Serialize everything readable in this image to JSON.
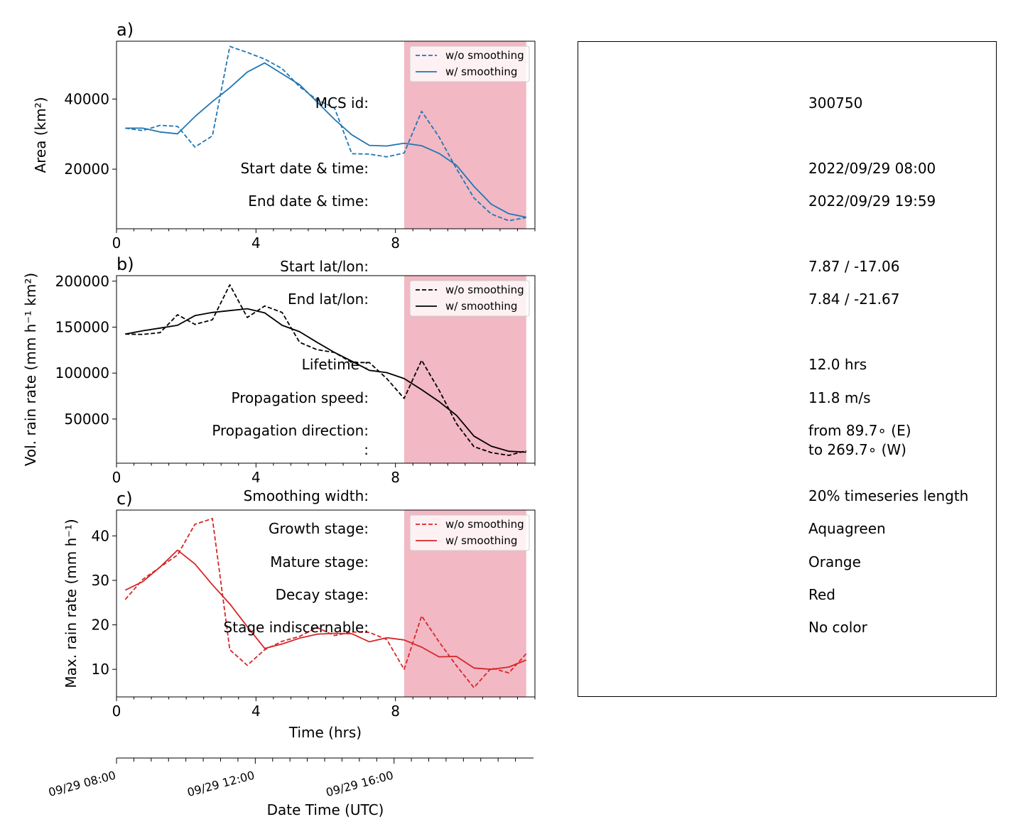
{
  "colors": {
    "decay_span": "#f2b8c4",
    "panel_a": "#1f77b4",
    "panel_b": "#000000",
    "panel_c": "#d62728"
  },
  "chart_data": [
    {
      "type": "line",
      "panel_label": "a)",
      "ylabel": "Area  (km²)",
      "xlabel": "",
      "xlim": [
        0,
        12
      ],
      "ylim": [
        3000,
        56500
      ],
      "xticks": [
        0,
        4,
        8
      ],
      "yticks": [
        20000,
        40000
      ],
      "ytick_labels": [
        "20000",
        "40000"
      ],
      "decay_span": [
        8.25,
        11.75
      ],
      "legend": "top-right",
      "color": "#1f77b4",
      "x": [
        0.25,
        0.75,
        1.25,
        1.75,
        2.25,
        2.75,
        3.25,
        3.75,
        4.25,
        4.75,
        5.25,
        5.75,
        6.25,
        6.75,
        7.25,
        7.75,
        8.25,
        8.75,
        9.25,
        9.75,
        10.25,
        10.75,
        11.25,
        11.75
      ],
      "series": [
        {
          "name": "w/o smoothing",
          "dash": true,
          "values": [
            31700,
            31000,
            32500,
            32200,
            26300,
            29500,
            55000,
            53300,
            51400,
            48700,
            43500,
            39800,
            37500,
            24400,
            24300,
            23500,
            24600,
            36500,
            29200,
            20100,
            11800,
            7200,
            5300,
            6200
          ]
        },
        {
          "name": "w/ smoothing",
          "dash": false,
          "values": [
            31700,
            31700,
            30600,
            30100,
            35000,
            39300,
            43200,
            47700,
            50300,
            47200,
            44100,
            39200,
            34200,
            29800,
            26800,
            26600,
            27400,
            26700,
            24500,
            21100,
            15100,
            10000,
            7300,
            6300
          ]
        }
      ]
    },
    {
      "type": "line",
      "panel_label": "b)",
      "ylabel": "Vol. rain rate (mm h⁻¹ km²)",
      "xlabel": "",
      "xlim": [
        0,
        12
      ],
      "ylim": [
        2000,
        206000
      ],
      "xticks": [
        0,
        4,
        8
      ],
      "yticks": [
        50000,
        100000,
        150000,
        200000
      ],
      "ytick_labels": [
        "50000",
        "100000",
        "150000",
        "200000"
      ],
      "decay_span": [
        8.25,
        11.75
      ],
      "legend": "top-right",
      "color": "#000000",
      "x": [
        0.25,
        0.75,
        1.25,
        1.75,
        2.25,
        2.75,
        3.25,
        3.75,
        4.25,
        4.75,
        5.25,
        5.75,
        6.25,
        6.75,
        7.25,
        7.75,
        8.25,
        8.75,
        9.25,
        9.75,
        10.25,
        10.75,
        11.25,
        11.75
      ],
      "series": [
        {
          "name": "w/o smoothing",
          "dash": true,
          "values": [
            142500,
            142000,
            144000,
            163500,
            153000,
            158000,
            196000,
            160500,
            173000,
            166000,
            133500,
            125500,
            122500,
            111500,
            111500,
            94000,
            72500,
            114000,
            81500,
            45000,
            20000,
            13500,
            10500,
            15500
          ]
        },
        {
          "name": "w/ smoothing",
          "dash": false,
          "values": [
            142500,
            146000,
            149000,
            152000,
            162500,
            166000,
            168000,
            170000,
            165500,
            152000,
            145000,
            133500,
            122500,
            113000,
            103000,
            100500,
            94000,
            82000,
            69000,
            54000,
            31500,
            20500,
            15000,
            14000
          ]
        }
      ]
    },
    {
      "type": "line",
      "panel_label": "c)",
      "ylabel": "Max. rain rate  (mm h⁻¹)",
      "xlabel": "Time (hrs)",
      "xlim": [
        0,
        12
      ],
      "ylim": [
        3.8,
        45.8
      ],
      "xticks": [
        0,
        4,
        8
      ],
      "yticks": [
        10,
        20,
        30,
        40
      ],
      "ytick_labels": [
        "10",
        "20",
        "30",
        "40"
      ],
      "decay_span": [
        8.25,
        11.75
      ],
      "legend": "top-right",
      "color": "#d62728",
      "x": [
        0.25,
        0.75,
        1.25,
        1.75,
        2.25,
        2.75,
        3.25,
        3.75,
        4.25,
        4.75,
        5.25,
        5.75,
        6.25,
        6.75,
        7.25,
        7.75,
        8.25,
        8.75,
        9.25,
        9.75,
        10.25,
        10.75,
        11.25,
        11.75
      ],
      "series": [
        {
          "name": "w/o smoothing",
          "dash": true,
          "values": [
            25.7,
            30.2,
            33.0,
            35.7,
            42.6,
            43.9,
            14.4,
            10.9,
            14.4,
            16.3,
            17.4,
            19.4,
            17.6,
            18.4,
            18.3,
            16.7,
            10.0,
            22.0,
            16.2,
            10.8,
            5.9,
            10.3,
            9.2,
            13.5
          ]
        },
        {
          "name": "w/ smoothing",
          "dash": false,
          "values": [
            27.8,
            29.7,
            33.0,
            36.8,
            33.7,
            29.0,
            24.7,
            19.6,
            14.7,
            15.7,
            17.0,
            17.9,
            18.1,
            18.0,
            16.2,
            17.1,
            16.6,
            15.0,
            12.8,
            12.9,
            10.3,
            10.0,
            10.5,
            12.1
          ]
        }
      ]
    }
  ],
  "date_axis": {
    "label": "Date Time (UTC)",
    "ticks": [
      {
        "t": 0,
        "label": "09/29 08:00"
      },
      {
        "t": 4,
        "label": "09/29 12:00"
      },
      {
        "t": 8,
        "label": "09/29 16:00"
      }
    ]
  },
  "info": {
    "mcs_id": {
      "label": "MCS id:",
      "value": "300750"
    },
    "start_time": {
      "label": "Start date & time:",
      "value": "2022/09/29 08:00"
    },
    "end_time": {
      "label": "End date & time:",
      "value": "2022/09/29 19:59"
    },
    "start_latlon": {
      "label": "Start lat/lon:",
      "value": "7.87 / -17.06"
    },
    "end_latlon": {
      "label": "End lat/lon:",
      "value": "7.84 / -21.67"
    },
    "lifetime": {
      "label": "Lifetime :",
      "value": "12.0 hrs"
    },
    "prop_speed": {
      "label": "Propagation speed:",
      "value": "11.8 m/s"
    },
    "prop_dir": {
      "label": "Propagation direction:",
      "value": "from  89.7∘ (E)"
    },
    "prop_dir2": {
      "label": ":",
      "value": "to   269.7∘ (W)"
    },
    "smoothing": {
      "label": "Smoothing width:",
      "value": "20% timeseries length"
    },
    "growth": {
      "label": "Growth stage:",
      "value": "Aquagreen"
    },
    "mature": {
      "label": "Mature stage:",
      "value": "Orange"
    },
    "decay": {
      "label": "Decay stage:",
      "value": "Red"
    },
    "indiscernable": {
      "label": "Stage indiscernable:",
      "value": "No color"
    }
  }
}
